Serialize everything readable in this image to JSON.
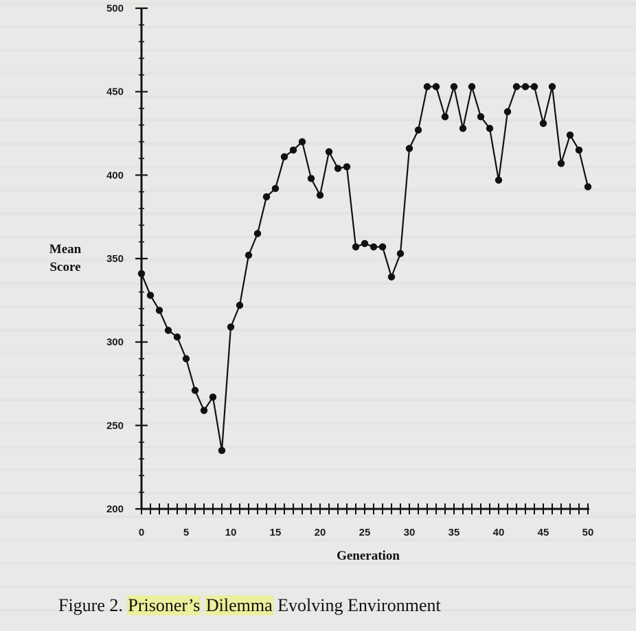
{
  "caption": {
    "prefix": "Figure 2.",
    "hl1": "Prisoner’s",
    "hl2": "Dilemma",
    "rest": "Evolving Environment"
  },
  "colors": {
    "background": "#e9e9e7",
    "line": "#111111",
    "highlight": "#ecef9c"
  },
  "chart_data": {
    "type": "line",
    "title": "",
    "xlabel": "Generation",
    "ylabel": [
      "Mean",
      "Score"
    ],
    "xlim": [
      0,
      50
    ],
    "ylim": [
      200,
      500
    ],
    "xticks": [
      0,
      5,
      10,
      15,
      20,
      25,
      30,
      35,
      40,
      45,
      50
    ],
    "yticks": [
      200,
      250,
      300,
      350,
      400,
      450,
      500
    ],
    "grid": false,
    "legend": "none",
    "series": [
      {
        "x": [
          0,
          1,
          2,
          3,
          4,
          5,
          6,
          7,
          8,
          9,
          10,
          11,
          12,
          13,
          14,
          15,
          16,
          17,
          18,
          19,
          20,
          21,
          22,
          23,
          24,
          25,
          26,
          27,
          28,
          29,
          30,
          31,
          32,
          33,
          34,
          35,
          36,
          37,
          38,
          39,
          40,
          41,
          42,
          43,
          44,
          45,
          46,
          47,
          48,
          49,
          50
        ],
        "values": [
          341,
          328,
          319,
          307,
          303,
          290,
          271,
          259,
          267,
          235,
          309,
          322,
          352,
          365,
          387,
          392,
          411,
          415,
          420,
          398,
          388,
          414,
          404,
          405,
          357,
          359,
          357,
          357,
          339,
          353,
          416,
          427,
          453,
          453,
          435,
          453,
          428,
          453,
          435,
          428,
          397,
          438,
          453,
          453,
          453,
          431,
          453,
          407,
          424,
          415,
          393
        ]
      }
    ]
  }
}
